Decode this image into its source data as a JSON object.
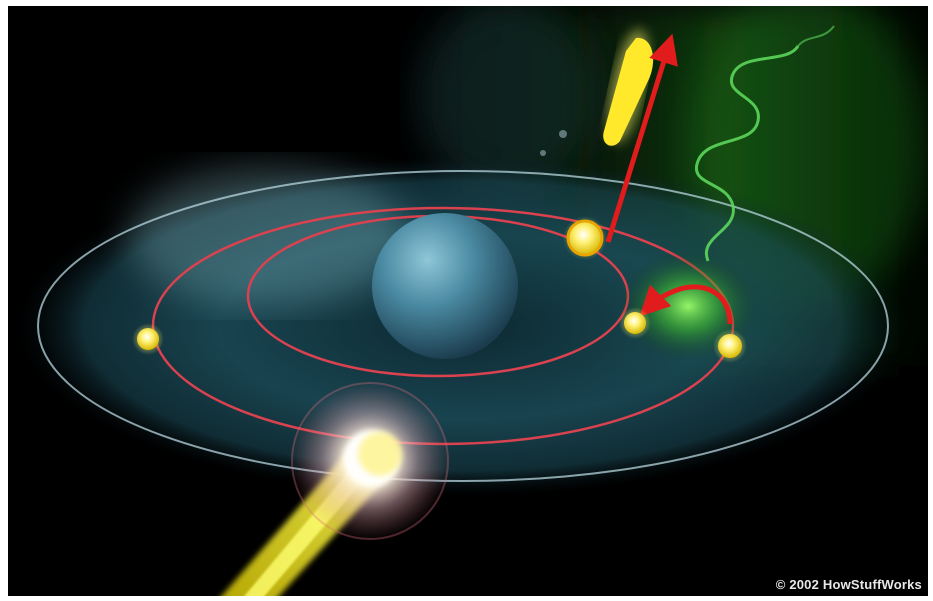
{
  "illustration": {
    "copyright": "© 2002 HowStuffWorks"
  },
  "colors": {
    "background": "#000000",
    "nucleus": "#4a8aa2",
    "orbit": "#d9424e",
    "outer_ring": "#b7d6df",
    "electron": "#ffee33",
    "photon_wave": "#5bd65b",
    "arrow": "#e21c1c",
    "incoming_beam": "#f7ef2a"
  },
  "icons": {
    "nucleus": "sphere",
    "electrons": "glowing-dot",
    "photon": "wavy-line",
    "ejected_electron": "streak-with-arrow",
    "transition": "curved-arrow"
  }
}
